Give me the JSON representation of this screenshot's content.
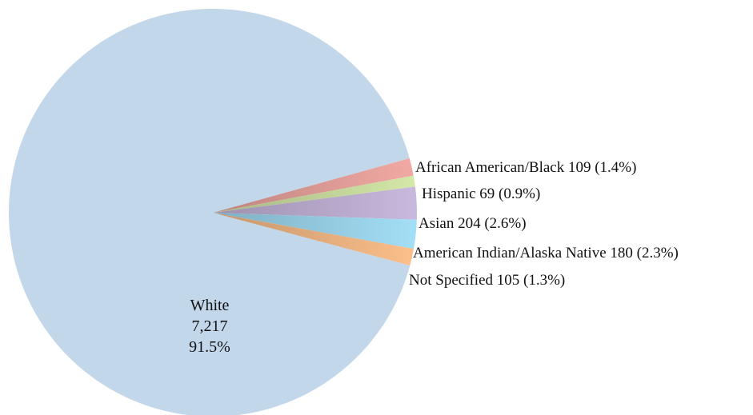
{
  "chart_data": {
    "type": "pie",
    "title": "",
    "slices": [
      {
        "label": "White",
        "value": 7217,
        "value_text": "7,217",
        "percent_text": "91.5%",
        "color": "#c3d7eb",
        "label_text": ""
      },
      {
        "label": "African American/Black",
        "value": 109,
        "percent_text": "1.4%",
        "color": "#f2a9a3",
        "label_text": "African American/Black 109  (1.4%)"
      },
      {
        "label": "Hispanic",
        "value": 69,
        "percent_text": "0.9%",
        "color": "#d4e8a8",
        "label_text": "Hispanic 69  (0.9%)"
      },
      {
        "label": "Asian",
        "value": 204,
        "percent_text": "2.6%",
        "color": "#c9b9de",
        "label_text": "Asian 204  (2.6%)"
      },
      {
        "label": "American Indian/Alaska Native",
        "value": 180,
        "percent_text": "2.3%",
        "color": "#a3dff7",
        "label_text": "American Indian/Alaska Native 180 (2.3%)"
      },
      {
        "label": "Not Specified",
        "value": 105,
        "percent_text": "1.3%",
        "color": "#fbbf8a",
        "label_text": "Not Specified 105 (1.3%)"
      }
    ]
  }
}
